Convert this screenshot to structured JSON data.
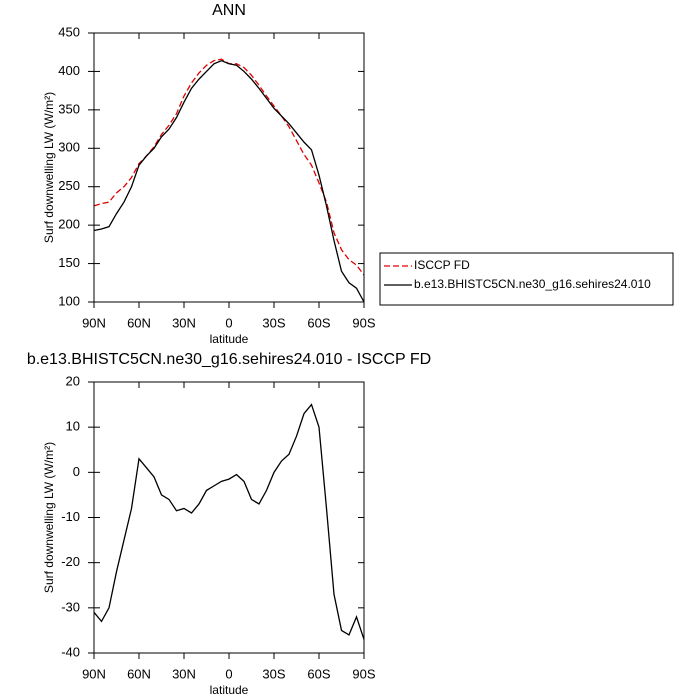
{
  "chart_data": [
    {
      "type": "line",
      "title": "ANN",
      "xlabel": "latitude",
      "ylabel": "Surf downwelling LW (W/m²)",
      "x": [
        90,
        85,
        80,
        75,
        70,
        65,
        60,
        55,
        50,
        45,
        40,
        35,
        30,
        25,
        20,
        15,
        10,
        5,
        0,
        -5,
        -10,
        -15,
        -20,
        -25,
        -30,
        -35,
        -40,
        -45,
        -50,
        -55,
        -60,
        -65,
        -70,
        -75,
        -80,
        -85,
        -90
      ],
      "xlim": [
        90,
        -90
      ],
      "xticks": [
        {
          "value": 90,
          "label": "90N"
        },
        {
          "value": 60,
          "label": "60N"
        },
        {
          "value": 30,
          "label": "30N"
        },
        0,
        {
          "value": -30,
          "label": "30S"
        },
        {
          "value": -60,
          "label": "60S"
        },
        {
          "value": -90,
          "label": "90S"
        }
      ],
      "ylim": [
        100,
        450
      ],
      "yticks": [
        100,
        150,
        200,
        250,
        300,
        350,
        400,
        450
      ],
      "legend": "outside-right",
      "series": [
        {
          "name": "ISCCP FD",
          "color": "#e00000",
          "dash": true,
          "values": [
            225,
            228,
            230,
            242,
            250,
            262,
            280,
            290,
            302,
            318,
            330,
            345,
            368,
            385,
            398,
            408,
            414,
            416,
            410,
            410,
            405,
            395,
            382,
            368,
            355,
            342,
            328,
            310,
            292,
            278,
            255,
            230,
            190,
            168,
            155,
            148,
            135
          ]
        },
        {
          "name": "b.e13.BHISTC5CN.ne30_g16.sehires24.010",
          "color": "#000000",
          "dash": false,
          "values": [
            193,
            195,
            198,
            215,
            230,
            250,
            278,
            290,
            300,
            315,
            325,
            340,
            360,
            378,
            390,
            400,
            410,
            414,
            410,
            408,
            400,
            390,
            378,
            365,
            352,
            342,
            332,
            320,
            308,
            298,
            265,
            225,
            180,
            140,
            125,
            118,
            100
          ]
        }
      ]
    },
    {
      "type": "line",
      "title": "b.e13.BHISTC5CN.ne30_g16.sehires24.010 - ISCCP FD",
      "xlabel": "latitude",
      "ylabel": "Surf downwelling LW (W/m²)",
      "x": [
        90,
        85,
        80,
        75,
        70,
        65,
        60,
        55,
        50,
        45,
        40,
        35,
        30,
        25,
        20,
        15,
        10,
        5,
        0,
        -5,
        -10,
        -15,
        -20,
        -25,
        -30,
        -35,
        -40,
        -45,
        -50,
        -55,
        -60,
        -65,
        -70,
        -75,
        -80,
        -85,
        -90
      ],
      "xlim": [
        90,
        -90
      ],
      "xticks": [
        {
          "value": 90,
          "label": "90N"
        },
        {
          "value": 60,
          "label": "60N"
        },
        {
          "value": 30,
          "label": "30N"
        },
        0,
        {
          "value": -30,
          "label": "30S"
        },
        {
          "value": -60,
          "label": "60S"
        },
        {
          "value": -90,
          "label": "90S"
        }
      ],
      "ylim": [
        -40,
        20
      ],
      "yticks": [
        -40,
        -30,
        -20,
        -10,
        0,
        10,
        20
      ],
      "color": "#000000",
      "values": [
        -31,
        -33,
        -30,
        -22,
        -15,
        -8,
        3,
        1,
        -1,
        -5,
        -6,
        -8.5,
        -8,
        -9,
        -7,
        -4,
        -3,
        -2,
        -1.5,
        -0.5,
        -2,
        -6,
        -7,
        -4,
        0,
        2.5,
        4,
        8,
        13,
        15,
        10,
        -8,
        -27,
        -35,
        -36,
        -32,
        -37
      ]
    }
  ]
}
